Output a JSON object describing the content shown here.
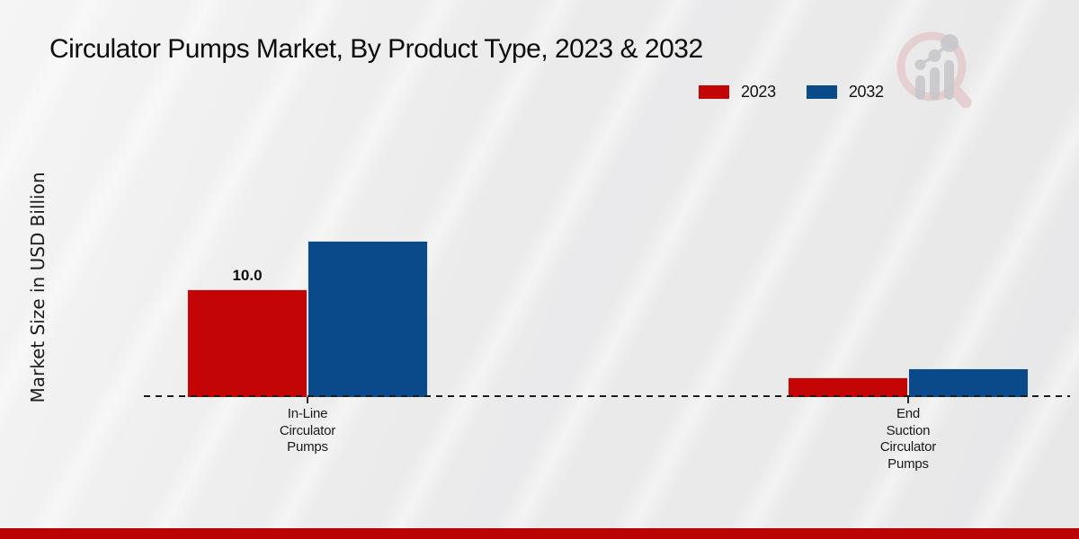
{
  "title": "Circulator Pumps Market, By Product Type, 2023 & 2032",
  "ylabel": "Market Size in USD Billion",
  "legend": [
    {
      "label": "2023"
    },
    {
      "label": "2032"
    }
  ],
  "chart_data": {
    "type": "bar",
    "title": "Circulator Pumps Market, By Product Type, 2023 & 2032",
    "ylabel": "Market Size in USD Billion",
    "xlabel": "",
    "categories": [
      "In-Line Circulator Pumps",
      "End Suction Circulator Pumps"
    ],
    "series": [
      {
        "name": "2023",
        "color": "#c40505",
        "values": [
          10.0,
          1.8
        ]
      },
      {
        "name": "2032",
        "color": "#0b4a8a",
        "values": [
          14.5,
          2.7
        ]
      }
    ],
    "bar_labels": [
      {
        "series": "2023",
        "category": "In-Line Circulator Pumps",
        "text": "10.0"
      }
    ],
    "ylim": [
      0,
      26
    ],
    "grid": false,
    "y_axis_ticks_visible": false,
    "legend_position": "top-right",
    "baseline_style": "dashed"
  },
  "colors": {
    "series_2023": "#c40505",
    "series_2032": "#0b4a8a",
    "footer_bar": "#ba0404",
    "background": "#ebebec",
    "baseline": "#1c1c1c",
    "logo_ring": "#e3c6c8",
    "logo_bars": "#c8c8cd"
  },
  "logo": {
    "name": "magnifier-bar-chart-logo"
  }
}
